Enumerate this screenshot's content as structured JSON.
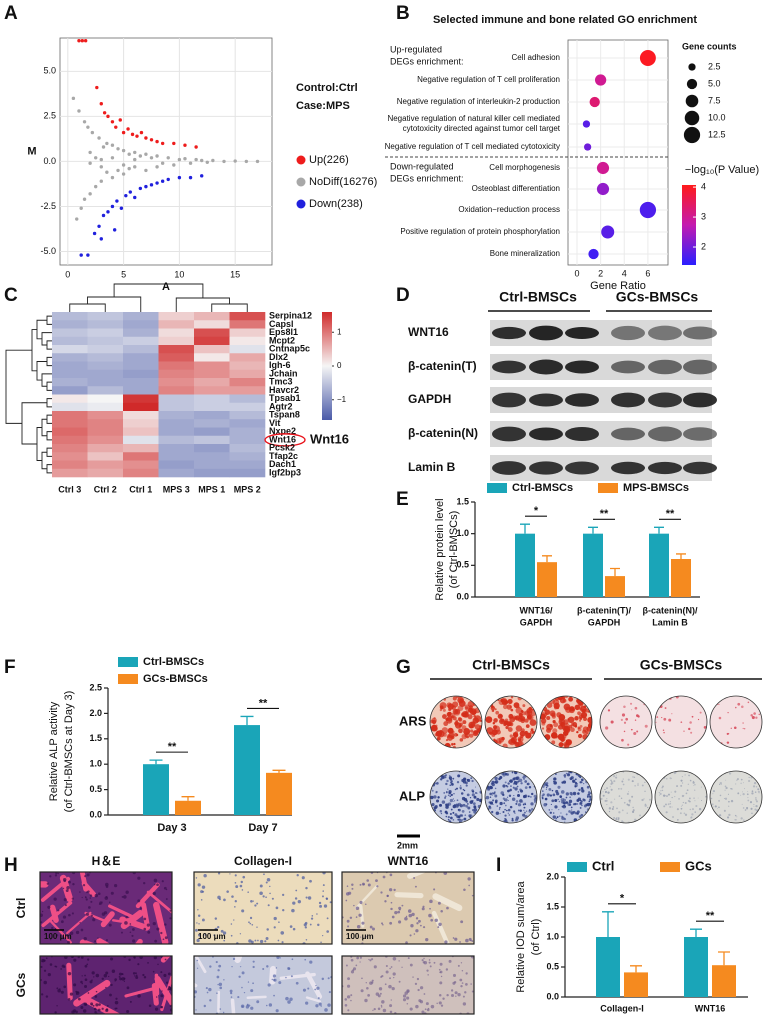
{
  "figure": {
    "panel_letters": [
      "A",
      "B",
      "C",
      "D",
      "E",
      "F",
      "G",
      "H",
      "I"
    ]
  },
  "chart_data": [
    {
      "type": "scatter",
      "x_label": "A",
      "y_label": "M",
      "annotations": [
        "Control:Ctrl",
        "Case:MPS"
      ],
      "grid": true,
      "xlim": [
        -0.7,
        18.3
      ],
      "ylim": [
        -5.75,
        6.85
      ],
      "xticks": [
        0,
        5,
        10,
        15
      ],
      "yticks": [
        {
          "value": -5,
          "label": "-5.0"
        },
        -2.5,
        {
          "value": 0,
          "label": "0.0"
        },
        2.5,
        {
          "value": 5,
          "label": "5.0"
        }
      ],
      "series": [
        {
          "name": "Up(226)",
          "color": "#ee1c1c",
          "x": [
            1,
            1.3,
            1.6,
            2.6,
            3,
            3.3,
            3.6,
            4,
            4.3,
            4.7,
            5,
            5.4,
            5.8,
            6.2,
            6.6,
            7,
            7.5,
            8,
            8.5,
            9.5,
            10.5,
            11.5
          ],
          "values": [
            6.7,
            6.7,
            6.7,
            4.1,
            3.2,
            2.7,
            2.5,
            2.2,
            1.9,
            2.3,
            1.6,
            1.8,
            1.5,
            1.4,
            1.6,
            1.3,
            1.2,
            1.1,
            1,
            1,
            0.9,
            0.8
          ]
        },
        {
          "name": "NoDiff(16276)",
          "color": "#a8a8a8",
          "x": [
            0.5,
            0.8,
            1,
            1.2,
            1.5,
            1.5,
            1.8,
            2,
            2,
            2.2,
            2.5,
            2.5,
            2.8,
            3,
            3,
            3.2,
            3.5,
            3.5,
            4,
            4,
            4.5,
            4.5,
            5,
            5,
            5.5,
            5.5,
            6,
            6,
            6.5,
            7,
            7,
            7.5,
            8,
            8,
            8.5,
            9,
            9.5,
            10,
            10.5,
            11,
            11.5,
            12,
            12.5,
            13,
            14,
            15,
            16,
            17,
            2,
            3,
            4,
            5,
            6
          ],
          "values": [
            3.5,
            -3.2,
            2.8,
            -2.6,
            2.2,
            -2.1,
            1.9,
            -1.8,
            0.5,
            1.6,
            -1.4,
            0.2,
            1.3,
            -1.1,
            -0.3,
            0.8,
            1,
            -0.6,
            0.9,
            -0.9,
            0.7,
            -0.5,
            0.6,
            -0.7,
            0.4,
            -0.4,
            0.5,
            -0.3,
            0.3,
            0.4,
            -0.5,
            0.2,
            0.3,
            -0.3,
            -0.1,
            0.2,
            -0.2,
            0.1,
            0.15,
            -0.1,
            0.1,
            0.05,
            -0.05,
            0.05,
            0,
            0.02,
            0,
            0,
            -0.1,
            0.1,
            0.2,
            -0.2,
            0.1
          ]
        },
        {
          "name": "Down(238)",
          "color": "#2020dd",
          "x": [
            1.2,
            1.8,
            2.4,
            2.8,
            3.2,
            3.6,
            4,
            4.4,
            4.8,
            5.2,
            5.6,
            6,
            6.5,
            7,
            7.5,
            8,
            8.5,
            9,
            10,
            11,
            12,
            3,
            4.2
          ],
          "values": [
            -5.2,
            -5.2,
            -4,
            -3.6,
            -3,
            -2.8,
            -2.5,
            -2.2,
            -2.6,
            -1.9,
            -1.7,
            -2,
            -1.5,
            -1.4,
            -1.3,
            -1.2,
            -1.1,
            -1,
            -0.9,
            -0.9,
            -0.8,
            -4.3,
            -3.8
          ]
        }
      ]
    },
    {
      "type": "bubble",
      "title": "Selected immune and bone related GO enrichment",
      "x_label": "Gene Ratio",
      "groups": [
        {
          "label": [
            "Up-regulated",
            "DEGs enrichment:"
          ],
          "color": "#d42a2a"
        },
        {
          "label": [
            "Down-regulated",
            "DEGs enrichment:"
          ],
          "color": "#2a4fa8"
        }
      ],
      "categories": [
        [
          "Cell adhesion"
        ],
        [
          "Negative regulation of T cell proliferation"
        ],
        [
          "Negative regulation of interleukin-2 production"
        ],
        [
          "Negative regulation of natural killer cell mediated",
          "cytotoxicity directed against tumor cell target"
        ],
        [
          "Negative regulation of T cell mediated cytotoxicity"
        ],
        [
          "Cell morphogenesis"
        ],
        [
          "Osteoblast differentiation"
        ],
        [
          "Oxidation−reduction process"
        ],
        [
          "Positive regulation of protein phosphorylation"
        ],
        [
          "Bone mineralization"
        ]
      ],
      "category_group": [
        0,
        0,
        0,
        0,
        0,
        1,
        1,
        1,
        1,
        1
      ],
      "x": [
        6,
        2,
        1.5,
        0.8,
        0.9,
        2.2,
        2.2,
        6,
        2.6,
        1.4
      ],
      "size": [
        12,
        6,
        5,
        2.5,
        2.5,
        7,
        7,
        12.5,
        8,
        5
      ],
      "color_values": [
        4,
        3,
        3.3,
        1.8,
        2,
        3,
        2.3,
        1.7,
        1.8,
        1.6
      ],
      "xlim": [
        -0.76,
        7.7
      ],
      "xticks": [
        0,
        2,
        4,
        6
      ],
      "grid": true,
      "size_legend": {
        "title": "Gene counts",
        "values": [
          2.5,
          {
            "value": 5,
            "label": "5.0"
          },
          7.5,
          {
            "value": 10,
            "label": "10.0"
          },
          12.5
        ]
      },
      "color_scale": {
        "title": "−log₁₀(P Value)",
        "lim": [
          1.4,
          4.07
        ],
        "ticks": [
          2,
          3,
          4
        ],
        "colors": [
          "#2a1fff",
          "#c41ab0",
          "#ff1a1a"
        ]
      }
    },
    {
      "type": "heatmap",
      "columns": [
        "Ctrl 3",
        "Ctrl 2",
        "Ctrl 1",
        "MPS 3",
        "MPS 1",
        "MPS 2"
      ],
      "rows": [
        "Serpina12",
        "Capsl",
        "Eps8l1",
        "Mcpt2",
        "Cntnap5c",
        "Dlx2",
        "Igh-6",
        "Jchain",
        "Tmc3",
        "Havcr2",
        "Tpsab1",
        "Agtr2",
        "Tspan8",
        "Vit",
        "Nxpe2",
        "Wnt16",
        "Pcsk2",
        "Tfap2c",
        "Dach1",
        "Igf2bp3"
      ],
      "values": [
        [
          -0.6,
          -0.5,
          -0.7,
          0.3,
          0.5,
          1.3
        ],
        [
          -0.7,
          -0.6,
          -0.8,
          0.5,
          0.2,
          1
        ],
        [
          -0.5,
          -0.4,
          -0.7,
          0.2,
          1.3,
          0.3
        ],
        [
          -0.6,
          -0.5,
          -0.4,
          0.3,
          1.4,
          0.1
        ],
        [
          -0.3,
          -0.4,
          -0.6,
          1.3,
          0.4,
          -0.2
        ],
        [
          -0.7,
          -0.6,
          -0.8,
          1.2,
          0.1,
          0.6
        ],
        [
          -0.8,
          -0.7,
          -0.8,
          1,
          0.8,
          0.5
        ],
        [
          -0.8,
          -0.8,
          -0.9,
          0.9,
          0.8,
          0.6
        ],
        [
          -0.7,
          -0.8,
          -0.8,
          0.8,
          0.6,
          0.9
        ],
        [
          -0.9,
          -0.6,
          -0.8,
          0.9,
          0.7,
          0.7
        ],
        [
          0.1,
          0,
          1.5,
          -0.5,
          -0.4,
          -0.6
        ],
        [
          -0.2,
          -0.1,
          1.6,
          -0.5,
          -0.4,
          -0.4
        ],
        [
          1,
          0.8,
          0.2,
          -0.7,
          -0.8,
          -0.6
        ],
        [
          1,
          0.9,
          0.3,
          -0.8,
          -0.7,
          -0.8
        ],
        [
          1.1,
          0.9,
          0.4,
          -0.8,
          -0.9,
          -0.7
        ],
        [
          1,
          0.8,
          -0.2,
          -0.6,
          -0.5,
          -0.7
        ],
        [
          0.9,
          0.6,
          0.5,
          -0.8,
          -0.9,
          -0.6
        ],
        [
          0.8,
          0.4,
          1,
          -0.8,
          -0.8,
          -0.7
        ],
        [
          0.9,
          0.7,
          0.8,
          -0.9,
          -0.8,
          -0.8
        ],
        [
          0.7,
          0.6,
          0.9,
          -0.8,
          -0.9,
          -0.9
        ]
      ],
      "color_scale": {
        "lim": [
          -1.6,
          1.6
        ],
        "ticks": [
          1,
          0,
          {
            "value": -1,
            "label": "−1"
          }
        ],
        "colors": [
          "#4a5aa8",
          "#f5f5f5",
          "#d02a2a"
        ]
      },
      "highlight_label": "Wnt16",
      "highlight_color": "#e8141c"
    },
    {
      "type": "bar",
      "categories": [
        [
          "WNT16/",
          "GAPDH"
        ],
        [
          "β-catenin(T)/",
          "GAPDH"
        ],
        [
          "β-catenin(N)/",
          "Lamin B"
        ]
      ],
      "series": [
        {
          "name": "Ctrl-BMSCs",
          "color": "#1aa5b8",
          "values": [
            1,
            1,
            1
          ],
          "errors": [
            0.15,
            0.1,
            0.1
          ]
        },
        {
          "name": "MPS-BMSCs",
          "color": "#f58a1f",
          "values": [
            0.55,
            0.33,
            0.6
          ],
          "errors": [
            0.1,
            0.12,
            0.08
          ]
        }
      ],
      "ylim": [
        0,
        1.5
      ],
      "yticks": [
        {
          "value": 0,
          "label": "0.0"
        },
        0.5,
        {
          "value": 1,
          "label": "1.0"
        },
        1.5
      ],
      "y_label": [
        "Relative protein level",
        "(of Ctrl-BMSCs)"
      ],
      "significance": [
        "*",
        "**",
        "**"
      ]
    },
    {
      "type": "bar",
      "categories": [
        [
          "Day 3"
        ],
        [
          "Day 7"
        ]
      ],
      "series": [
        {
          "name": "Ctrl-BMSCs",
          "color": "#1aa5b8",
          "values": [
            1,
            1.77
          ],
          "errors": [
            0.08,
            0.17
          ]
        },
        {
          "name": "GCs-BMSCs",
          "color": "#f58a1f",
          "values": [
            0.28,
            0.83
          ],
          "errors": [
            0.08,
            0.05
          ]
        }
      ],
      "ylim": [
        0,
        2.5
      ],
      "yticks": [
        {
          "value": 0,
          "label": "0.0"
        },
        0.5,
        {
          "value": 1,
          "label": "1.0"
        },
        1.5,
        {
          "value": 2,
          "label": "2.0"
        },
        2.5
      ],
      "y_label": [
        "Relative ALP activity",
        "(of Ctrl-BMSCs at Day 3)"
      ],
      "significance": [
        "**",
        "**"
      ]
    },
    {
      "type": "bar",
      "categories": [
        [
          "Collagen-I"
        ],
        [
          "WNT16"
        ]
      ],
      "series": [
        {
          "name": "Ctrl",
          "color": "#1aa5b8",
          "values": [
            1,
            1
          ],
          "errors": [
            0.42,
            0.13
          ]
        },
        {
          "name": "GCs",
          "color": "#f58a1f",
          "values": [
            0.41,
            0.53
          ],
          "errors": [
            0.11,
            0.22
          ]
        }
      ],
      "ylim": [
        0,
        2
      ],
      "yticks": [
        {
          "value": 0,
          "label": "0.0"
        },
        0.5,
        {
          "value": 1,
          "label": "1.0"
        },
        1.5,
        {
          "value": 2,
          "label": "2.0"
        }
      ],
      "y_label": [
        "Relative IOD sum/area",
        "(of Ctrl)"
      ],
      "significance": [
        "*",
        "**"
      ]
    }
  ],
  "western_blot": {
    "groups": [
      "Ctrl-BMSCs",
      "GCs-BMSCs"
    ],
    "rows": [
      "WNT16",
      "β-catenin(T)",
      "GAPDH",
      "β-catenin(N)",
      "Lamin B"
    ]
  },
  "staining_g": {
    "groups": [
      "Ctrl-BMSCs",
      "GCs-BMSCs"
    ],
    "rows": [
      "ARS",
      "ALP"
    ],
    "scale_bar": "2mm"
  },
  "histology_h": {
    "columns": [
      "H＆E",
      "Collagen-I",
      "WNT16"
    ],
    "rows": [
      "Ctrl",
      "GCs"
    ],
    "scale_bar": "100 μm"
  }
}
